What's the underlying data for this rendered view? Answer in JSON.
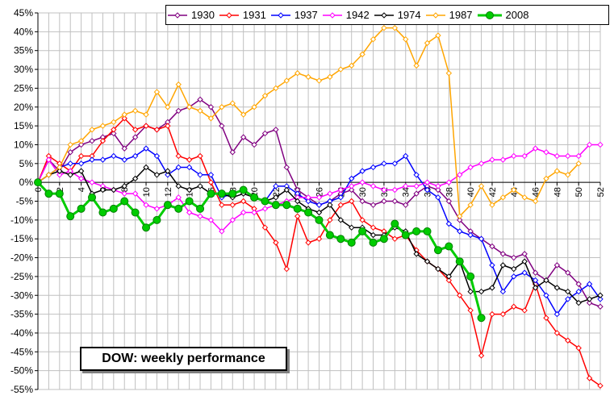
{
  "chart_data": {
    "type": "line",
    "title": "DOW: weekly performance",
    "xlabel": "",
    "ylabel": "",
    "xlim": [
      0,
      52
    ],
    "ylim": [
      -55,
      45
    ],
    "yticks": [
      45,
      40,
      35,
      30,
      25,
      20,
      15,
      10,
      5,
      0,
      -5,
      -10,
      -15,
      -20,
      -25,
      -30,
      -35,
      -40,
      -45,
      -50,
      -55
    ],
    "ytick_labels": [
      "45%",
      "40%",
      "35%",
      "30%",
      "25%",
      "20%",
      "15%",
      "10%",
      "5%",
      "0%",
      "-5%",
      "-10%",
      "-15%",
      "-20%",
      "-25%",
      "-30%",
      "-35%",
      "-40%",
      "-45%",
      "-50%",
      "-55%"
    ],
    "xticks": [
      0,
      2,
      4,
      6,
      8,
      10,
      12,
      14,
      16,
      18,
      20,
      22,
      24,
      26,
      28,
      30,
      32,
      34,
      36,
      38,
      40,
      42,
      44,
      46,
      48,
      50,
      52
    ],
    "xtick_labels": [
      "0",
      "2",
      "4",
      "6",
      "8",
      "10",
      "12",
      "14",
      "16",
      "18",
      "20",
      "22",
      "24",
      "26",
      "28",
      "30",
      "32",
      "34",
      "36",
      "38",
      "40",
      "42",
      "44",
      "46",
      "48",
      "50",
      "52"
    ],
    "grid": true,
    "legend_position": "top-right",
    "series": [
      {
        "name": "1930",
        "color": "#800080",
        "values": [
          0,
          6,
          3,
          8,
          10,
          11,
          12,
          13,
          9,
          12,
          15,
          14,
          16,
          19,
          20,
          22,
          20,
          15,
          8,
          12,
          10,
          13,
          14,
          4,
          -2,
          -4,
          -6,
          -5,
          -3,
          -2,
          -5,
          -6,
          -5,
          -5,
          -6,
          -3,
          -1,
          -2,
          -5,
          -10,
          -13,
          -15,
          -17,
          -19,
          -20,
          -19,
          -24,
          -26,
          -22,
          -24,
          -27,
          -32,
          -33
        ]
      },
      {
        "name": "1931",
        "color": "#ff0000",
        "values": [
          0,
          7,
          5,
          3,
          7,
          7,
          11,
          14,
          17,
          14,
          15,
          14,
          15,
          7,
          6,
          7,
          0,
          -6,
          -6,
          -5,
          -7,
          -12,
          -16,
          -23,
          -9,
          -16,
          -15,
          -10,
          -6,
          -5,
          -10,
          -12,
          -13,
          -15,
          -14,
          -18,
          -21,
          -23,
          -26,
          -30,
          -34,
          -46,
          -35,
          -35,
          -33,
          -34,
          -27,
          -36,
          -40,
          -42,
          -44,
          -52,
          -54
        ]
      },
      {
        "name": "1937",
        "color": "#0000ff",
        "values": [
          0,
          2,
          4,
          5,
          5,
          6,
          6,
          7,
          6,
          7,
          9,
          7,
          2,
          4,
          4,
          2,
          2,
          -4,
          -3,
          -2,
          -4,
          -5,
          -1,
          -1,
          -3,
          -5,
          -6,
          -5,
          -4,
          1,
          3,
          4,
          5,
          5,
          7,
          2,
          -2,
          -4,
          -11,
          -13,
          -14,
          -15,
          -22,
          -29,
          -25,
          -24,
          -26,
          -30,
          -35,
          -31,
          -29,
          -27,
          -31
        ]
      },
      {
        "name": "1942",
        "color": "#ff00ff",
        "values": [
          0,
          6,
          2,
          3,
          1,
          0,
          -1,
          -2,
          -3,
          -3,
          -6,
          -7,
          -6,
          -4,
          -8,
          -9,
          -10,
          -13,
          -10,
          -8,
          -8,
          -7,
          -6,
          -5,
          -4,
          -4,
          -4,
          -3,
          -2,
          -1,
          0,
          -1,
          -2,
          -2,
          -1,
          -1,
          0,
          -1,
          0,
          2,
          4,
          5,
          6,
          6,
          7,
          7,
          9,
          8,
          7,
          7,
          7,
          10,
          10
        ]
      },
      {
        "name": "1974",
        "color": "#000000",
        "values": [
          0,
          2,
          3,
          2,
          3,
          -3,
          -2,
          -2,
          -1,
          1,
          4,
          2,
          3,
          -1,
          -2,
          -1,
          -3,
          -3,
          -4,
          -3,
          -4,
          -5,
          -4,
          -2,
          -5,
          -7,
          -8,
          -6,
          -10,
          -12,
          -12,
          -14,
          -14,
          -12,
          -13,
          -19,
          -21,
          -23,
          -25,
          -21,
          -29,
          -29,
          -28,
          -22,
          -23,
          -21,
          -28,
          -26,
          -28,
          -29,
          -32,
          -31,
          -30
        ]
      },
      {
        "name": "1987",
        "color": "#ffa500",
        "values": [
          0,
          2,
          4,
          10,
          11,
          14,
          15,
          16,
          18,
          19,
          18,
          24,
          20,
          26,
          20,
          19,
          17,
          20,
          21,
          18,
          20,
          23,
          25,
          27,
          29,
          28,
          27,
          28,
          30,
          31,
          34,
          38,
          41,
          41,
          38,
          31,
          37,
          39,
          29,
          -9,
          -6,
          -1,
          -6,
          -4,
          -2,
          -4,
          -5,
          1,
          3,
          2,
          5,
          null,
          null
        ]
      },
      {
        "name": "2008",
        "color": "#00cc00",
        "values": [
          0,
          -3,
          -3,
          -9,
          -7,
          -4,
          -8,
          -7,
          -5,
          -8,
          -12,
          -10,
          -6,
          -7,
          -5,
          -7,
          -3,
          -3,
          -3,
          -2,
          -4,
          -5,
          -6,
          -6,
          -7,
          -8,
          -10,
          -14,
          -15,
          -16,
          -13,
          -16,
          -15,
          -11,
          -14,
          -13,
          -13,
          -18,
          -17,
          -21,
          -25,
          -36,
          null,
          null,
          null,
          null,
          null,
          null,
          null,
          null,
          null,
          null,
          null
        ]
      }
    ]
  }
}
